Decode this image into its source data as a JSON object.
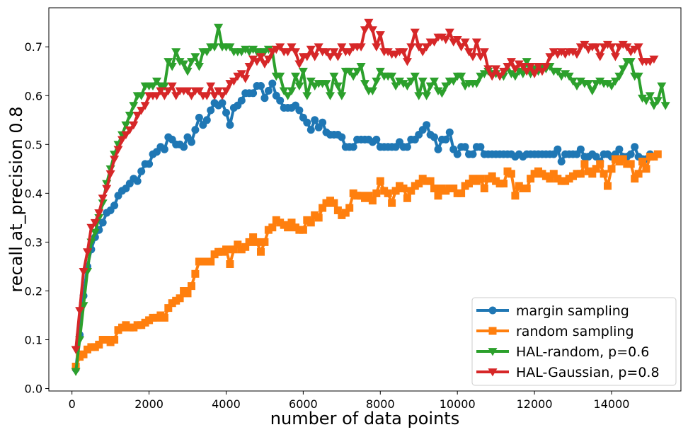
{
  "chart_data": {
    "type": "line",
    "title": "",
    "xlabel": "number of data points",
    "ylabel": "recall at_precision 0.8",
    "xlim": [
      -600,
      15800
    ],
    "ylim": [
      -0.005,
      0.78
    ],
    "xticks": [
      0,
      2000,
      4000,
      6000,
      8000,
      10000,
      12000,
      14000
    ],
    "yticks": [
      0.0,
      0.1,
      0.2,
      0.3,
      0.4,
      0.5,
      0.6,
      0.7
    ],
    "grid": false,
    "legend": "lower-right",
    "x_start": 100,
    "x_step": 100,
    "series": [
      {
        "name": "margin sampling",
        "color": "#1f77b4",
        "marker": "circle",
        "values": [
          0.04,
          0.11,
          0.19,
          0.25,
          0.285,
          0.31,
          0.325,
          0.34,
          0.36,
          0.365,
          0.375,
          0.395,
          0.405,
          0.41,
          0.42,
          0.43,
          0.425,
          0.445,
          0.46,
          0.46,
          0.48,
          0.485,
          0.495,
          0.49,
          0.515,
          0.51,
          0.5,
          0.5,
          0.495,
          0.515,
          0.505,
          0.53,
          0.555,
          0.54,
          0.55,
          0.57,
          0.585,
          0.58,
          0.585,
          0.565,
          0.54,
          0.575,
          0.58,
          0.59,
          0.605,
          0.605,
          0.605,
          0.62,
          0.62,
          0.595,
          0.61,
          0.625,
          0.6,
          0.59,
          0.575,
          0.575,
          0.575,
          0.58,
          0.57,
          0.555,
          0.545,
          0.53,
          0.55,
          0.535,
          0.545,
          0.525,
          0.52,
          0.52,
          0.52,
          0.515,
          0.495,
          0.495,
          0.495,
          0.51,
          0.51,
          0.51,
          0.51,
          0.505,
          0.51,
          0.495,
          0.495,
          0.495,
          0.495,
          0.495,
          0.505,
          0.495,
          0.495,
          0.51,
          0.51,
          0.52,
          0.53,
          0.54,
          0.52,
          0.515,
          0.49,
          0.51,
          0.51,
          0.525,
          0.49,
          0.48,
          0.495,
          0.495,
          0.48,
          0.48,
          0.495,
          0.495,
          0.48,
          0.48,
          0.48,
          0.48,
          0.48,
          0.48,
          0.48,
          0.48,
          0.475,
          0.48,
          0.475,
          0.48,
          0.48,
          0.48,
          0.48,
          0.48,
          0.48,
          0.48,
          0.48,
          0.49,
          0.465,
          0.48,
          0.48,
          0.48,
          0.48,
          0.49,
          0.475,
          0.475,
          0.48,
          0.475,
          0.465,
          0.48,
          0.48,
          0.475,
          0.48,
          0.49,
          0.475,
          0.475,
          0.48,
          0.495,
          0.475,
          0.47,
          0.47,
          0.48
        ]
      },
      {
        "name": "random sampling",
        "color": "#ff7f0e",
        "marker": "square",
        "values": [
          0.045,
          0.065,
          0.07,
          0.08,
          0.085,
          0.085,
          0.09,
          0.1,
          0.1,
          0.095,
          0.1,
          0.12,
          0.125,
          0.13,
          0.125,
          0.125,
          0.13,
          0.13,
          0.135,
          0.14,
          0.145,
          0.145,
          0.15,
          0.145,
          0.165,
          0.175,
          0.18,
          0.185,
          0.2,
          0.195,
          0.21,
          0.235,
          0.26,
          0.26,
          0.26,
          0.26,
          0.275,
          0.28,
          0.28,
          0.285,
          0.255,
          0.285,
          0.295,
          0.285,
          0.29,
          0.3,
          0.31,
          0.3,
          0.28,
          0.3,
          0.325,
          0.33,
          0.345,
          0.34,
          0.335,
          0.33,
          0.34,
          0.33,
          0.325,
          0.325,
          0.345,
          0.34,
          0.355,
          0.35,
          0.37,
          0.38,
          0.385,
          0.38,
          0.365,
          0.355,
          0.36,
          0.37,
          0.4,
          0.395,
          0.395,
          0.39,
          0.395,
          0.385,
          0.4,
          0.425,
          0.405,
          0.4,
          0.38,
          0.405,
          0.415,
          0.41,
          0.39,
          0.405,
          0.415,
          0.42,
          0.43,
          0.425,
          0.425,
          0.41,
          0.395,
          0.41,
          0.405,
          0.41,
          0.41,
          0.4,
          0.4,
          0.415,
          0.42,
          0.43,
          0.425,
          0.43,
          0.41,
          0.43,
          0.435,
          0.425,
          0.42,
          0.42,
          0.445,
          0.44,
          0.395,
          0.415,
          0.41,
          0.41,
          0.43,
          0.44,
          0.445,
          0.44,
          0.435,
          0.43,
          0.44,
          0.43,
          0.425,
          0.425,
          0.43,
          0.435,
          0.44,
          0.44,
          0.46,
          0.445,
          0.44,
          0.45,
          0.46,
          0.44,
          0.415,
          0.45,
          0.47,
          0.465,
          0.47,
          0.46,
          0.46,
          0.43,
          0.44,
          0.465,
          0.45,
          0.475,
          0.475,
          0.48
        ]
      },
      {
        "name": "HAL-random, p=0.6",
        "color": "#2ca02c",
        "marker": "triangle-down",
        "values": [
          0.035,
          0.1,
          0.17,
          0.24,
          0.3,
          0.32,
          0.35,
          0.38,
          0.42,
          0.45,
          0.48,
          0.5,
          0.52,
          0.54,
          0.56,
          0.58,
          0.6,
          0.6,
          0.62,
          0.62,
          0.62,
          0.63,
          0.62,
          0.62,
          0.67,
          0.66,
          0.69,
          0.67,
          0.665,
          0.65,
          0.67,
          0.68,
          0.66,
          0.69,
          0.69,
          0.7,
          0.7,
          0.74,
          0.7,
          0.7,
          0.7,
          0.69,
          0.69,
          0.69,
          0.695,
          0.69,
          0.695,
          0.69,
          0.69,
          0.69,
          0.695,
          0.69,
          0.64,
          0.64,
          0.61,
          0.6,
          0.61,
          0.64,
          0.62,
          0.65,
          0.6,
          0.63,
          0.62,
          0.625,
          0.625,
          0.625,
          0.6,
          0.64,
          0.62,
          0.6,
          0.65,
          0.65,
          0.64,
          0.65,
          0.66,
          0.625,
          0.61,
          0.61,
          0.63,
          0.65,
          0.64,
          0.64,
          0.64,
          0.62,
          0.63,
          0.625,
          0.62,
          0.63,
          0.64,
          0.6,
          0.63,
          0.6,
          0.62,
          0.63,
          0.61,
          0.605,
          0.62,
          0.63,
          0.63,
          0.64,
          0.64,
          0.62,
          0.625,
          0.625,
          0.625,
          0.64,
          0.645,
          0.65,
          0.645,
          0.645,
          0.64,
          0.64,
          0.66,
          0.645,
          0.64,
          0.65,
          0.645,
          0.67,
          0.645,
          0.655,
          0.65,
          0.66,
          0.655,
          0.66,
          0.65,
          0.65,
          0.64,
          0.645,
          0.64,
          0.63,
          0.62,
          0.63,
          0.625,
          0.625,
          0.61,
          0.625,
          0.63,
          0.625,
          0.625,
          0.62,
          0.63,
          0.64,
          0.655,
          0.67,
          0.67,
          0.64,
          0.64,
          0.595,
          0.59,
          0.6,
          0.58,
          0.59,
          0.62,
          0.58
        ]
      },
      {
        "name": "HAL-Gaussian, p=0.8",
        "color": "#d62728",
        "marker": "triangle-down",
        "values": [
          0.08,
          0.16,
          0.24,
          0.28,
          0.33,
          0.34,
          0.36,
          0.39,
          0.41,
          0.44,
          0.47,
          0.49,
          0.51,
          0.52,
          0.53,
          0.54,
          0.56,
          0.57,
          0.58,
          0.6,
          0.6,
          0.6,
          0.61,
          0.6,
          0.61,
          0.62,
          0.6,
          0.61,
          0.61,
          0.61,
          0.6,
          0.61,
          0.61,
          0.6,
          0.6,
          0.62,
          0.6,
          0.61,
          0.6,
          0.61,
          0.625,
          0.63,
          0.64,
          0.645,
          0.635,
          0.66,
          0.675,
          0.67,
          0.68,
          0.665,
          0.675,
          0.69,
          0.695,
          0.7,
          0.69,
          0.69,
          0.7,
          0.69,
          0.665,
          0.68,
          0.68,
          0.695,
          0.68,
          0.7,
          0.69,
          0.69,
          0.68,
          0.69,
          0.68,
          0.7,
          0.69,
          0.69,
          0.7,
          0.7,
          0.7,
          0.735,
          0.75,
          0.735,
          0.7,
          0.725,
          0.69,
          0.69,
          0.685,
          0.685,
          0.69,
          0.69,
          0.67,
          0.7,
          0.73,
          0.7,
          0.69,
          0.7,
          0.71,
          0.71,
          0.72,
          0.72,
          0.715,
          0.73,
          0.71,
          0.715,
          0.7,
          0.71,
          0.69,
          0.68,
          0.71,
          0.68,
          0.69,
          0.655,
          0.64,
          0.655,
          0.64,
          0.65,
          0.66,
          0.67,
          0.655,
          0.665,
          0.66,
          0.65,
          0.66,
          0.645,
          0.66,
          0.65,
          0.66,
          0.68,
          0.69,
          0.685,
          0.69,
          0.685,
          0.69,
          0.69,
          0.685,
          0.7,
          0.705,
          0.695,
          0.7,
          0.7,
          0.68,
          0.7,
          0.705,
          0.7,
          0.68,
          0.7,
          0.705,
          0.7,
          0.69,
          0.695,
          0.7,
          0.67,
          0.67,
          0.67,
          0.675
        ]
      }
    ]
  }
}
